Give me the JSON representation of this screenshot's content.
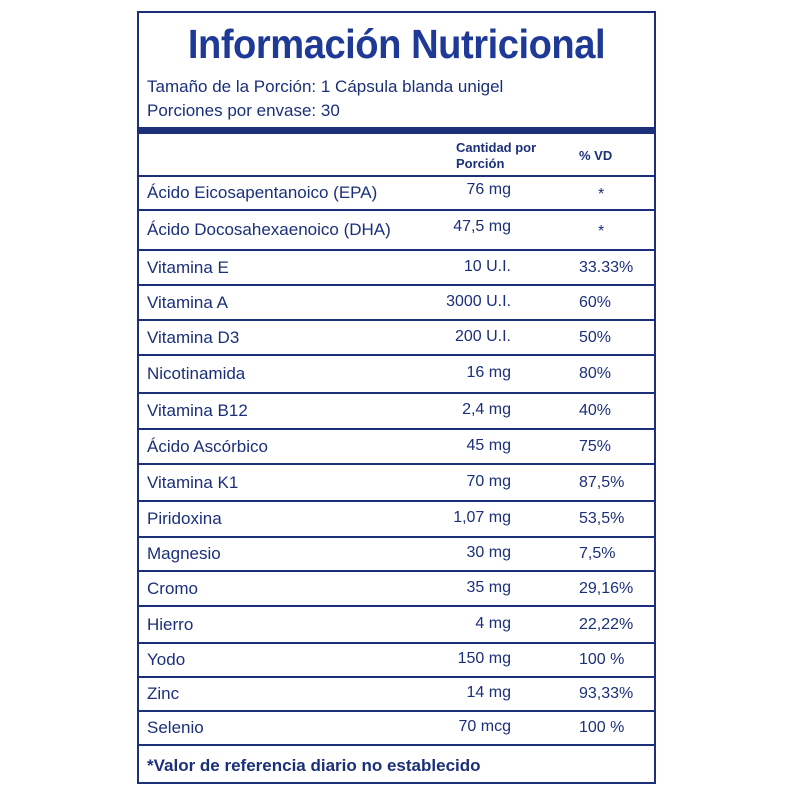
{
  "title": "Información Nutricional",
  "serving_size": "Tamaño de la Porción: 1 Cápsula blanda unigel",
  "servings_per_container": "Porciones por envase: 30",
  "columns": {
    "amount": "Cantidad por Porción",
    "dv": "% VD"
  },
  "nutrients": [
    {
      "name": "Ácido Eicosapentanoico (EPA)",
      "amount": "76 mg",
      "dv": "*"
    },
    {
      "name": "Ácido Docosahexaenoico (DHA)",
      "amount": "47,5 mg",
      "dv": "*"
    },
    {
      "name": "Vitamina E",
      "amount": "10 U.I.",
      "dv": "33.33%"
    },
    {
      "name": "Vitamina A",
      "amount": "3000 U.I.",
      "dv": "60%"
    },
    {
      "name": "Vitamina D3",
      "amount": "200 U.I.",
      "dv": "50%"
    },
    {
      "name": "Nicotinamida",
      "amount": "16 mg",
      "dv": "80%"
    },
    {
      "name": "Vitamina B12",
      "amount": "2,4 mg",
      "dv": "40%"
    },
    {
      "name": "Ácido Ascórbico",
      "amount": "45 mg",
      "dv": "75%"
    },
    {
      "name": "Vitamina K1",
      "amount": "70 mg",
      "dv": "87,5%"
    },
    {
      "name": "Piridoxina",
      "amount": "1,07 mg",
      "dv": "53,5%"
    },
    {
      "name": "Magnesio",
      "amount": "30 mg",
      "dv": "7,5%"
    },
    {
      "name": "Cromo",
      "amount": "35 mg",
      "dv": "29,16%"
    },
    {
      "name": "Hierro",
      "amount": "4 mg",
      "dv": "22,22%"
    },
    {
      "name": "Yodo",
      "amount": "150 mg",
      "dv": "100 %"
    },
    {
      "name": "Zinc",
      "amount": "14 mg",
      "dv": "93,33%"
    },
    {
      "name": "Selenio",
      "amount": "70 mcg",
      "dv": "100 %"
    }
  ],
  "footnote": "*Valor de referencia diario no establecido",
  "colors": {
    "primary": "#1b2f7a",
    "title": "#1e3a96"
  }
}
